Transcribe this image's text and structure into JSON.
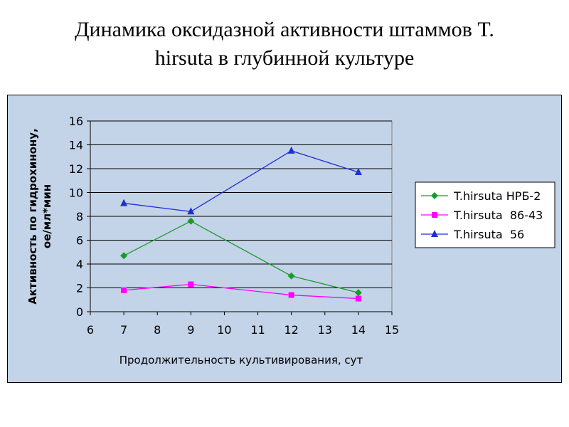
{
  "slide": {
    "title_line1": "Динамика оксидазной активности штаммов T.",
    "title_line2": "hirsuta в глубинной культуре"
  },
  "chart_data": {
    "type": "scatter",
    "xlabel": "Продолжительность культивирования, сут",
    "ylabel_line1": "Активность по гидрохинону,",
    "ylabel_line2": "ое/мл*мин",
    "xlim": [
      6,
      15
    ],
    "ylim": [
      0,
      16
    ],
    "x_ticks": [
      6,
      7,
      8,
      9,
      10,
      11,
      12,
      13,
      14,
      15
    ],
    "y_ticks": [
      0,
      2,
      4,
      6,
      8,
      10,
      12,
      14,
      16
    ],
    "grid": "horizontal",
    "legend_position": "right",
    "colors": {
      "plot_bg": "#c3d3e8",
      "outer_bg": "#c3d3e8",
      "axis": "#000000",
      "grid": "#000000"
    },
    "series": [
      {
        "name": "T.hirsuta НРБ-2",
        "color": "#1a9a2a",
        "marker": "diamond",
        "x": [
          7,
          9,
          12,
          14
        ],
        "y": [
          4.7,
          7.6,
          3.0,
          1.6
        ]
      },
      {
        "name": "T.hirsuta  86-43",
        "color": "#ff00ff",
        "marker": "square",
        "x": [
          7,
          9,
          12,
          14
        ],
        "y": [
          1.8,
          2.3,
          1.4,
          1.1
        ]
      },
      {
        "name": "T.hirsuta  56",
        "color": "#1f2fd6",
        "marker": "triangle",
        "x": [
          7,
          9,
          12,
          14
        ],
        "y": [
          9.1,
          8.4,
          13.5,
          11.7
        ]
      }
    ]
  }
}
